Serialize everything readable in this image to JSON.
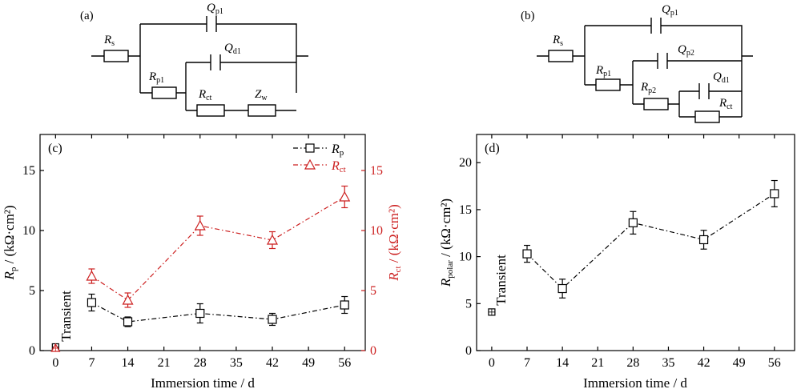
{
  "circuits": {
    "a": {
      "label": "(a)",
      "elements": [
        {
          "key": "rs",
          "sym": "R",
          "sub": "s"
        },
        {
          "key": "qp1",
          "sym": "Q",
          "sub": "p1"
        },
        {
          "key": "rp1",
          "sym": "R",
          "sub": "p1"
        },
        {
          "key": "qd1",
          "sym": "Q",
          "sub": "d1"
        },
        {
          "key": "rct",
          "sym": "R",
          "sub": "ct"
        },
        {
          "key": "zw",
          "sym": "Z",
          "sub": "w"
        }
      ]
    },
    "b": {
      "label": "(b)",
      "elements": [
        {
          "key": "rs",
          "sym": "R",
          "sub": "s"
        },
        {
          "key": "qp1",
          "sym": "Q",
          "sub": "p1"
        },
        {
          "key": "rp1",
          "sym": "R",
          "sub": "p1"
        },
        {
          "key": "qp2",
          "sym": "Q",
          "sub": "p2"
        },
        {
          "key": "rp2",
          "sym": "R",
          "sub": "p2"
        },
        {
          "key": "qd1",
          "sym": "Q",
          "sub": "d1"
        },
        {
          "key": "rct",
          "sym": "R",
          "sub": "ct"
        }
      ]
    }
  },
  "colors": {
    "series_rp": "#000000",
    "series_rct": "#cc1f1f"
  },
  "chart_data": [
    {
      "panel": "(c)",
      "type": "line",
      "xlabel": "Immersion time / d",
      "x_ticks": [
        0,
        7,
        14,
        21,
        28,
        35,
        42,
        49,
        56
      ],
      "xlim": [
        -3,
        60
      ],
      "ylabel_left": {
        "sym": "R",
        "sub": "p",
        "unit": " / (kΩ·cm²)"
      },
      "ylabel_right": {
        "sym": "R",
        "sub": "ct",
        "unit": " / (kΩ·cm²)"
      },
      "ylim_left": [
        0,
        18
      ],
      "ylim_right": [
        0,
        18
      ],
      "y_ticks_left": [
        0,
        5,
        10,
        15
      ],
      "y_ticks_right": [
        0,
        5,
        10,
        15
      ],
      "annotation": "Transient",
      "series": [
        {
          "name": "R_p",
          "legend": {
            "sym": "R",
            "sub": "p"
          },
          "marker": "square",
          "axis": "left",
          "color": "#000000",
          "x": [
            7,
            14,
            28,
            42,
            56
          ],
          "y": [
            4.0,
            2.4,
            3.1,
            2.6,
            3.8
          ],
          "err": [
            0.7,
            0.4,
            0.8,
            0.5,
            0.7
          ],
          "transient": {
            "x": 0,
            "y": 0.3
          }
        },
        {
          "name": "R_ct",
          "legend": {
            "sym": "R",
            "sub": "ct"
          },
          "marker": "triangle",
          "axis": "right",
          "color": "#cc1f1f",
          "x": [
            7,
            14,
            28,
            42,
            56
          ],
          "y": [
            6.2,
            4.2,
            10.4,
            9.2,
            12.8
          ],
          "err": [
            0.6,
            0.6,
            0.8,
            0.7,
            0.9
          ],
          "transient": {
            "x": 0,
            "y": 0.2
          }
        }
      ],
      "legend_position": "top-right"
    },
    {
      "panel": "(d)",
      "type": "line",
      "xlabel": "Immersion time / d",
      "x_ticks": [
        0,
        7,
        14,
        21,
        28,
        35,
        42,
        49,
        56
      ],
      "xlim": [
        -3,
        60
      ],
      "ylabel": {
        "sym": "R",
        "sub": "polar",
        "unit": " / (kΩ·cm²)"
      },
      "ylim": [
        0,
        23
      ],
      "y_ticks": [
        0,
        5,
        10,
        15,
        20
      ],
      "annotation": "Transient",
      "series": [
        {
          "name": "R_polar",
          "marker": "square",
          "color": "#000000",
          "x": [
            7,
            14,
            28,
            42,
            56
          ],
          "y": [
            10.3,
            6.6,
            13.6,
            11.8,
            16.7
          ],
          "err": [
            0.9,
            1.0,
            1.2,
            1.0,
            1.4
          ],
          "transient": {
            "x": 0,
            "y": 4.1
          }
        }
      ]
    }
  ]
}
